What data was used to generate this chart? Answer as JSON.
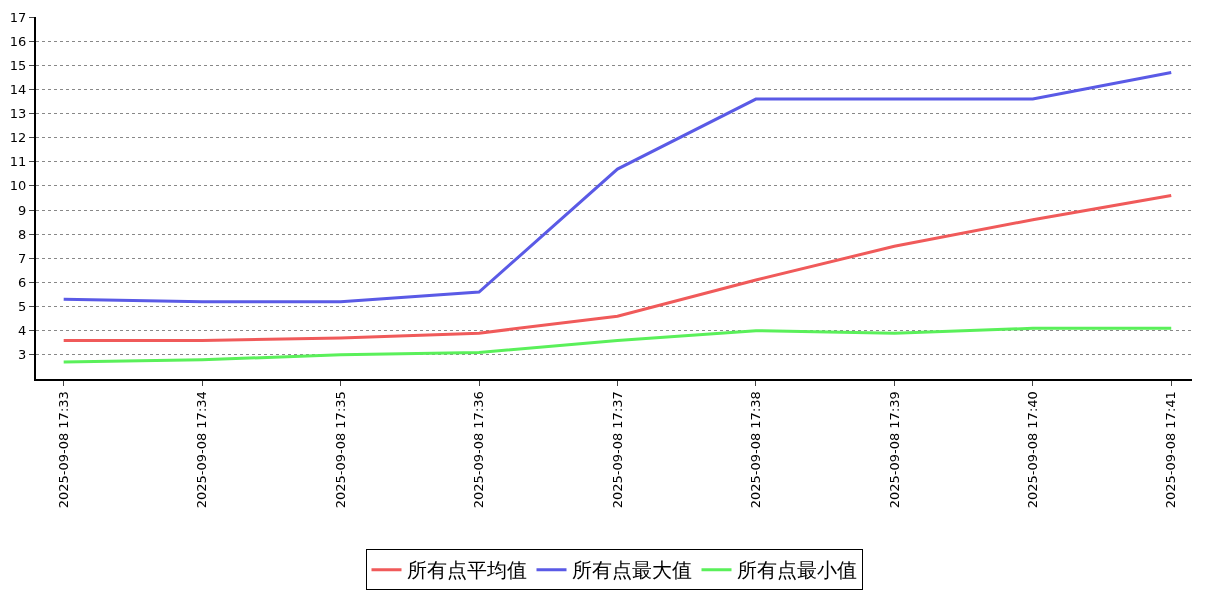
{
  "chart_data": {
    "type": "line",
    "categories": [
      "2025-09-08 17:33",
      "2025-09-08 17:34",
      "2025-09-08 17:35",
      "2025-09-08 17:36",
      "2025-09-08 17:37",
      "2025-09-08 17:38",
      "2025-09-08 17:39",
      "2025-09-08 17:40",
      "2025-09-08 17:41"
    ],
    "series": [
      {
        "name": "所有点平均值",
        "color": "#f05a5a",
        "values": [
          3.6,
          3.6,
          3.7,
          3.9,
          4.6,
          6.1,
          7.5,
          8.6,
          9.6
        ]
      },
      {
        "name": "所有点最大值",
        "color": "#5a5ae6",
        "values": [
          5.3,
          5.2,
          5.2,
          5.6,
          10.7,
          13.6,
          13.6,
          13.6,
          14.7
        ]
      },
      {
        "name": "所有点最小值",
        "color": "#5af05a",
        "values": [
          2.7,
          2.8,
          3.0,
          3.1,
          3.6,
          4.0,
          3.9,
          4.1,
          4.1
        ]
      }
    ],
    "ylim": [
      2,
      17
    ],
    "yticks": [
      3,
      4,
      5,
      6,
      7,
      8,
      9,
      10,
      11,
      12,
      13,
      14,
      15,
      16,
      17
    ],
    "grid": "y",
    "legend": "bottom",
    "marker": "none",
    "line_style": "solid"
  }
}
